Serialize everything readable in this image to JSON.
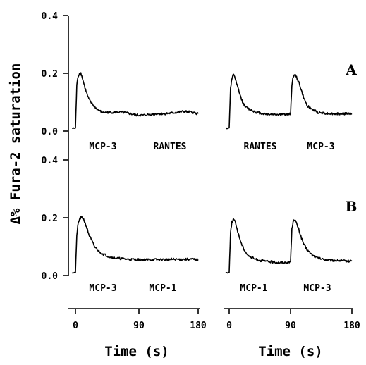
{
  "chart_data": {
    "type": "line",
    "ylabel": "Δ% Fura-2 saturation",
    "xlabel": "Time (s)",
    "y_ticks": [
      "0.4",
      "0.2",
      "0.0"
    ],
    "x_ticks": [
      "0",
      "90",
      "180"
    ],
    "ylim": [
      0,
      0.4
    ],
    "xlim": [
      -5,
      180
    ],
    "panels": [
      {
        "letter": "A",
        "left": {
          "stimuli": [
            "MCP-3",
            "RANTES"
          ],
          "x": [
            -5,
            0,
            2,
            4,
            6,
            8,
            10,
            14,
            18,
            22,
            26,
            30,
            35,
            40,
            50,
            60,
            70,
            80,
            90,
            100,
            110,
            120,
            130,
            140,
            150,
            160,
            170,
            180
          ],
          "y": [
            0.01,
            0.01,
            0.16,
            0.19,
            0.2,
            0.2,
            0.185,
            0.15,
            0.12,
            0.1,
            0.09,
            0.08,
            0.07,
            0.065,
            0.065,
            0.065,
            0.065,
            0.06,
            0.055,
            0.055,
            0.058,
            0.06,
            0.06,
            0.062,
            0.065,
            0.068,
            0.065,
            0.06
          ]
        },
        "right": {
          "stimuli": [
            "RANTES",
            "MCP-3"
          ],
          "x": [
            -5,
            0,
            2,
            4,
            6,
            8,
            10,
            14,
            18,
            22,
            26,
            30,
            35,
            40,
            50,
            60,
            70,
            80,
            88,
            90,
            92,
            94,
            96,
            98,
            102,
            106,
            110,
            114,
            118,
            122,
            126,
            130,
            140,
            150,
            160,
            170,
            180
          ],
          "y": [
            0.01,
            0.01,
            0.15,
            0.18,
            0.195,
            0.19,
            0.17,
            0.14,
            0.11,
            0.09,
            0.08,
            0.075,
            0.07,
            0.065,
            0.06,
            0.058,
            0.058,
            0.058,
            0.058,
            0.06,
            0.16,
            0.19,
            0.195,
            0.19,
            0.17,
            0.14,
            0.11,
            0.09,
            0.08,
            0.075,
            0.07,
            0.065,
            0.062,
            0.06,
            0.06,
            0.06,
            0.06
          ]
        }
      },
      {
        "letter": "B",
        "left": {
          "stimuli": [
            "MCP-3",
            "MCP-1"
          ],
          "x": [
            -5,
            0,
            2,
            4,
            6,
            8,
            10,
            12,
            16,
            20,
            24,
            28,
            32,
            36,
            40,
            45,
            50,
            60,
            70,
            80,
            90,
            100,
            110,
            120,
            130,
            140,
            150,
            160,
            170,
            180
          ],
          "y": [
            0.01,
            0.01,
            0.14,
            0.18,
            0.195,
            0.2,
            0.2,
            0.195,
            0.17,
            0.14,
            0.12,
            0.1,
            0.09,
            0.08,
            0.075,
            0.07,
            0.065,
            0.06,
            0.058,
            0.056,
            0.055,
            0.055,
            0.055,
            0.055,
            0.055,
            0.056,
            0.056,
            0.056,
            0.056,
            0.055
          ]
        },
        "right": {
          "stimuli": [
            "MCP-1",
            "MCP-3"
          ],
          "x": [
            -5,
            0,
            2,
            4,
            6,
            8,
            10,
            14,
            18,
            22,
            26,
            30,
            35,
            40,
            50,
            60,
            70,
            80,
            88,
            90,
            92,
            94,
            96,
            98,
            102,
            106,
            110,
            114,
            118,
            122,
            126,
            130,
            140,
            150,
            160,
            170,
            180
          ],
          "y": [
            0.01,
            0.01,
            0.15,
            0.185,
            0.195,
            0.19,
            0.175,
            0.14,
            0.11,
            0.09,
            0.075,
            0.065,
            0.06,
            0.055,
            0.05,
            0.048,
            0.045,
            0.045,
            0.045,
            0.05,
            0.16,
            0.19,
            0.195,
            0.185,
            0.16,
            0.13,
            0.105,
            0.09,
            0.08,
            0.07,
            0.065,
            0.06,
            0.055,
            0.052,
            0.052,
            0.05,
            0.05
          ]
        }
      }
    ]
  }
}
